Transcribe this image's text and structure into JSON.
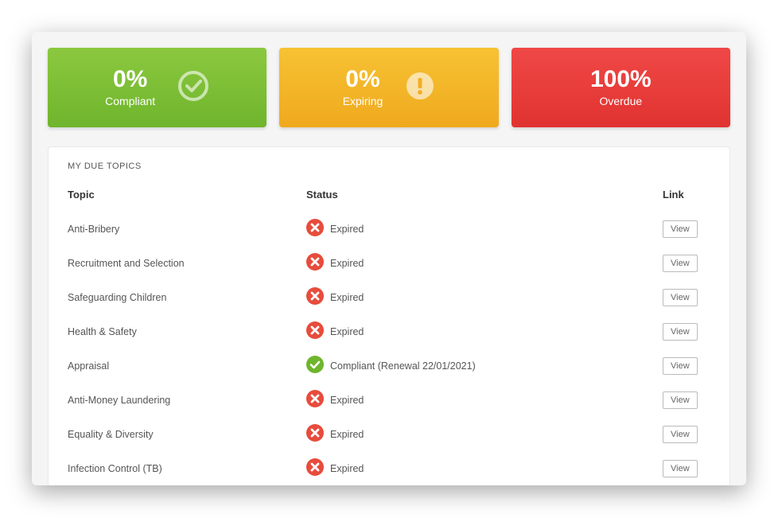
{
  "cards": {
    "compliant": {
      "value": "0%",
      "label": "Compliant",
      "bg_gradient_top": "#8bc83f",
      "bg_gradient_bottom": "#6fb52d",
      "icon": "check-circle"
    },
    "expiring": {
      "value": "0%",
      "label": "Expiring",
      "bg_gradient_top": "#f6c233",
      "bg_gradient_bottom": "#f0a91f",
      "icon": "exclamation-circle"
    },
    "overdue": {
      "value": "100%",
      "label": "Overdue",
      "bg_gradient_top": "#ef4846",
      "bg_gradient_bottom": "#e03331",
      "icon": null
    }
  },
  "panel": {
    "title": "MY DUE TOPICS",
    "columns": {
      "topic": "Topic",
      "status": "Status",
      "link": "Link"
    },
    "view_label": "View",
    "status_icon_colors": {
      "expired": "#e74c3c",
      "compliant": "#6fb52d"
    },
    "rows": [
      {
        "topic": "Anti-Bribery",
        "status_text": "Expired",
        "status_type": "expired"
      },
      {
        "topic": "Recruitment and Selection",
        "status_text": "Expired",
        "status_type": "expired"
      },
      {
        "topic": "Safeguarding Children",
        "status_text": "Expired",
        "status_type": "expired"
      },
      {
        "topic": "Health & Safety",
        "status_text": "Expired",
        "status_type": "expired"
      },
      {
        "topic": "Appraisal",
        "status_text": "Compliant (Renewal 22/01/2021)",
        "status_type": "compliant"
      },
      {
        "topic": "Anti-Money Laundering",
        "status_text": "Expired",
        "status_type": "expired"
      },
      {
        "topic": "Equality & Diversity",
        "status_text": "Expired",
        "status_type": "expired"
      },
      {
        "topic": "Infection Control (TB)",
        "status_text": "Expired",
        "status_type": "expired"
      }
    ]
  }
}
